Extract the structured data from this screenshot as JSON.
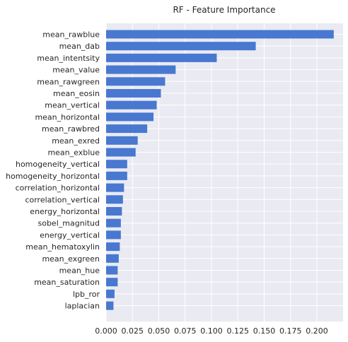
{
  "chart_data": {
    "type": "bar",
    "orientation": "horizontal",
    "title": "RF - Feature Importance",
    "xlabel": "",
    "ylabel": "",
    "xlim": [
      0,
      0.225
    ],
    "x_ticks": [
      "0.000",
      "0.025",
      "0.050",
      "0.075",
      "0.100",
      "0.125",
      "0.150",
      "0.175",
      "0.200"
    ],
    "x_tick_values": [
      0,
      0.025,
      0.05,
      0.075,
      0.1,
      0.125,
      0.15,
      0.175,
      0.2
    ],
    "grid": true,
    "bar_color": "#4878d0",
    "background_color": "#eaeaf2",
    "categories": [
      "mean_rawblue",
      "mean_dab",
      "mean_intentsity",
      "mean_value",
      "mean_rawgreen",
      "mean_eosin",
      "mean_vertical",
      "mean_horizontal",
      "mean_rawbred",
      "mean_exred",
      "mean_exblue",
      "homogeneity_vertical",
      "homogeneity_horizontal",
      "correlation_horizontal",
      "correlation_vertical",
      "energy_horizontal",
      "sobel_magnitud",
      "energy_vertical",
      "mean_hematoxylin",
      "mean_exgreen",
      "mean_hue",
      "mean_saturation",
      "lpb_ror",
      "laplacian"
    ],
    "values": [
      0.216,
      0.142,
      0.105,
      0.066,
      0.056,
      0.052,
      0.048,
      0.045,
      0.039,
      0.03,
      0.028,
      0.02,
      0.02,
      0.017,
      0.016,
      0.015,
      0.014,
      0.014,
      0.013,
      0.012,
      0.011,
      0.011,
      0.008,
      0.007
    ]
  }
}
